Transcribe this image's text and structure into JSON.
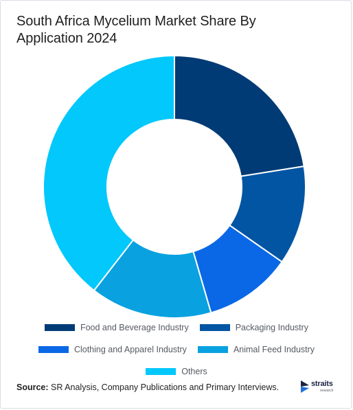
{
  "title": "South Africa Mycelium Market Share By Application 2024",
  "chart_data": {
    "type": "pie",
    "donut": true,
    "categories": [
      "Food and Beverage Industry",
      "Packaging Industry",
      "Clothing and Apparel Industry",
      "Animal Feed Industry",
      "Others"
    ],
    "values": [
      22.5,
      12.2,
      10.8,
      15.0,
      39.5
    ],
    "colors": [
      "#013b76",
      "#0255a3",
      "#0a68e6",
      "#09a1e0",
      "#02c8fb"
    ],
    "legend_position": "bottom"
  },
  "source": {
    "label": "Source:",
    "text": "SR Analysis, Company Publications and Primary Interviews."
  },
  "logo": {
    "name": "straits",
    "sub": "research"
  }
}
